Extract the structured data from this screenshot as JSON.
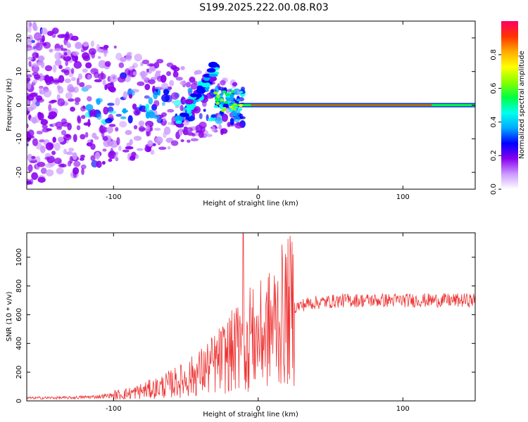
{
  "chart_data": [
    {
      "type": "heatmap",
      "title": "S199.2025.222.00.08.R03",
      "xlabel": "Height of straight line (km)",
      "ylabel": "Frequency (Hz)",
      "xlim": [
        -160,
        150
      ],
      "ylim": [
        -25,
        25
      ],
      "xticks": [
        -100,
        0,
        100
      ],
      "yticks": [
        -20,
        -10,
        0,
        10,
        20
      ],
      "colorbar": {
        "label": "Normalized spectral amplitude",
        "range": [
          0.0,
          1.0
        ],
        "ticks": [
          "0.0",
          "0.2",
          "0.4",
          "0.6",
          "0.8"
        ],
        "tick_values": [
          0.0,
          0.2,
          0.4,
          0.6,
          0.8
        ],
        "colors": [
          "#ffffff",
          "#cc99ff",
          "#8800ee",
          "#0000ff",
          "#00aaff",
          "#00ffee",
          "#00ff44",
          "#88ff00",
          "#ffff00",
          "#ffaa00",
          "#ff3300",
          "#ff0066"
        ]
      },
      "features": {
        "noise_region_km": [
          -160,
          -30
        ],
        "streak_start_km": -30,
        "streak_freq_hz": 0,
        "ridge_start_km": -55,
        "ridge_end_km": -28,
        "ridge_freq_hz": [
          -5,
          12
        ]
      }
    },
    {
      "type": "line",
      "xlabel": "Height of straight line (km)",
      "ylabel": "SNR (10 * v/v)",
      "xlim": [
        -160,
        150
      ],
      "ylim": [
        0,
        1170
      ],
      "xticks": [
        -100,
        0,
        100
      ],
      "yticks": [
        0,
        200,
        400,
        600,
        800,
        1000
      ],
      "line_color": "#ee3333",
      "profile": {
        "x": [
          -160,
          -130,
          -110,
          -90,
          -70,
          -50,
          -40,
          -30,
          -20,
          -12,
          -5,
          5,
          15,
          25,
          35,
          60,
          100,
          150
        ],
        "y": [
          20,
          22,
          30,
          50,
          90,
          150,
          200,
          260,
          330,
          380,
          420,
          470,
          580,
          650,
          680,
          700,
          700,
          700
        ]
      },
      "spike": {
        "x": -10.5,
        "y": 1170
      }
    }
  ]
}
